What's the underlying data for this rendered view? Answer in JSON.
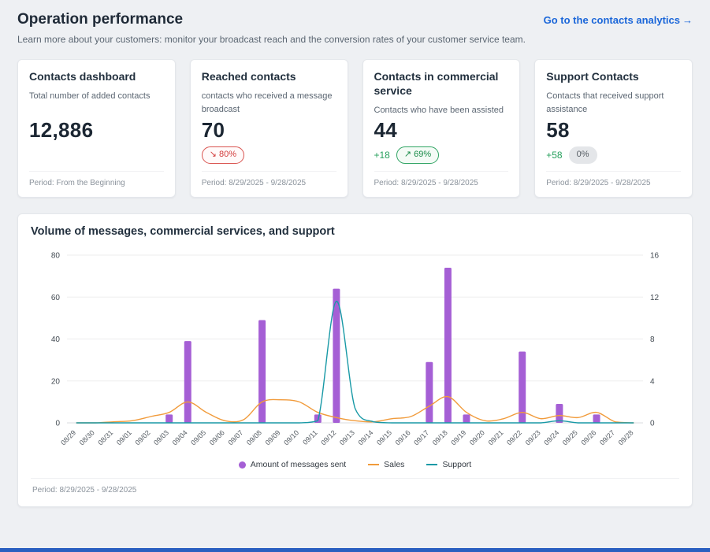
{
  "header": {
    "title": "Operation performance",
    "subtitle": "Learn more about your customers: monitor your broadcast reach and the conversion rates of your customer service team.",
    "link_label": "Go to the contacts analytics",
    "link_arrow": "→"
  },
  "colors": {
    "accent_purple": "#a55fd5",
    "accent_orange": "#f19b3b",
    "accent_teal": "#1899a6",
    "link_blue": "#1a66d9",
    "negative_red": "#d23b3b",
    "positive_green": "#27a05d"
  },
  "cards": [
    {
      "title": "Contacts dashboard",
      "subtitle": "Total number of added contacts",
      "value": "12,886",
      "period": "Period: From the Beginning"
    },
    {
      "title": "Reached contacts",
      "subtitle": "contacts who received a message broadcast",
      "value": "70",
      "badge_icon": "↘",
      "badge": "80%",
      "period": "Period: 8/29/2025 - 9/28/2025"
    },
    {
      "title": "Contacts in commercial service",
      "subtitle": "Contacts who have been assisted",
      "value": "44",
      "delta": "+18",
      "badge_icon": "↗",
      "badge": "69%",
      "period": "Period: 8/29/2025 - 9/28/2025"
    },
    {
      "title": "Support Contacts",
      "subtitle": "Contacts that received support assistance",
      "value": "58",
      "delta": "+58",
      "badge": "0%",
      "period": "Period: 8/29/2025 - 9/28/2025"
    }
  ],
  "chart_card": {
    "title": "Volume of messages, commercial services, and support",
    "period": "Period: 8/29/2025 - 9/28/2025"
  },
  "chart_data": {
    "type": "bar",
    "subtype": "combo-bar-line",
    "title": "Volume of messages, commercial services, and support",
    "categories": [
      "08/29",
      "08/30",
      "08/31",
      "09/01",
      "09/02",
      "09/03",
      "09/04",
      "09/05",
      "09/06",
      "09/07",
      "09/08",
      "09/09",
      "09/10",
      "09/11",
      "09/12",
      "09/13",
      "09/14",
      "09/15",
      "09/16",
      "09/17",
      "09/18",
      "09/19",
      "09/20",
      "09/21",
      "09/22",
      "09/23",
      "09/24",
      "09/25",
      "09/26",
      "09/27",
      "09/28"
    ],
    "series": [
      {
        "name": "Amount of messages sent",
        "type": "bar",
        "axis": "left",
        "color": "#a55fd5",
        "values": [
          0,
          0,
          0,
          0,
          0,
          4,
          39,
          0,
          0,
          0,
          49,
          0,
          0,
          4,
          64,
          0,
          0,
          0,
          0,
          29,
          74,
          4,
          0,
          0,
          34,
          0,
          9,
          0,
          4,
          0,
          0
        ]
      },
      {
        "name": "Sales",
        "type": "line",
        "axis": "right",
        "color": "#f19b3b",
        "values": [
          0,
          0,
          0.1,
          0.2,
          0.6,
          1,
          2,
          1,
          0.2,
          0.3,
          2,
          2.2,
          2,
          1,
          0.5,
          0.2,
          0.1,
          0.4,
          0.6,
          1.6,
          2.5,
          1,
          0.2,
          0.4,
          1,
          0.4,
          0.7,
          0.5,
          1,
          0.1,
          0
        ]
      },
      {
        "name": "Support",
        "type": "line",
        "axis": "right",
        "color": "#1899a6",
        "values": [
          0,
          0,
          0,
          0,
          0,
          0,
          0,
          0,
          0,
          0,
          0,
          0,
          0,
          0.2,
          11.6,
          1.4,
          0.1,
          0,
          0,
          0,
          0,
          0,
          0,
          0,
          0,
          0,
          0.2,
          0,
          0,
          0,
          0
        ]
      }
    ],
    "left_axis": {
      "ticks": [
        0,
        20,
        40,
        60,
        80
      ],
      "max": 80
    },
    "right_axis": {
      "ticks": [
        0,
        4,
        8,
        12,
        16
      ],
      "max": 16
    },
    "grid": true,
    "legend_position": "bottom"
  }
}
